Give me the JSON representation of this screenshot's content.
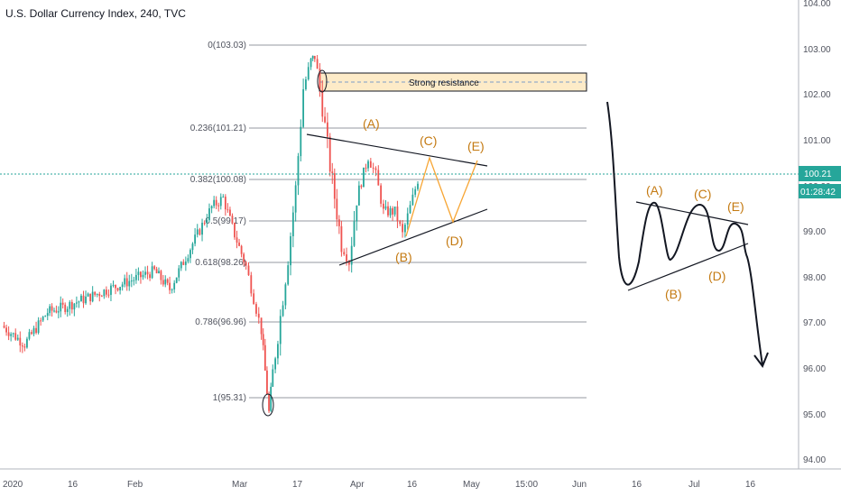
{
  "header": {
    "title": "U.S. Dollar Currency Index, 240, TVC"
  },
  "colors": {
    "up": "#26a69a",
    "down": "#ef5350",
    "wave_label": "#c47a12",
    "projection": "#f7a533",
    "fib_line": "#9598a1",
    "price_line": "#26a69a",
    "price_tag_bg": "#26a69a",
    "resistance_fill": "#fdebc8",
    "axis_text": "#50535e"
  },
  "price_axis": {
    "ticks": [
      "104.00",
      "103.00",
      "102.00",
      "101.00",
      "100.00",
      "99.00",
      "98.00",
      "97.00",
      "96.00",
      "95.00",
      "94.00"
    ],
    "current_price": "100.21",
    "countdown": "01:28:42"
  },
  "time_axis": {
    "ticks": [
      "2020",
      "16",
      "Feb",
      "Mar",
      "17",
      "Apr",
      "16",
      "May",
      "15:00",
      "Jun",
      "16",
      "Jul",
      "16"
    ]
  },
  "fib_levels": [
    {
      "label": "0(103.03)"
    },
    {
      "label": "0.236(101.21)"
    },
    {
      "label": "0.382(100.08)"
    },
    {
      "label": "0.5(99.17)"
    },
    {
      "label": "0.618(98.26)"
    },
    {
      "label": "0.786(96.96)"
    },
    {
      "label": "1(95.31)"
    }
  ],
  "resistance": {
    "label": "Strong resistance"
  },
  "wave_labels": {
    "chart": [
      "(A)",
      "(B)",
      "(C)",
      "(D)",
      "(E)"
    ],
    "schematic": [
      "(A)",
      "(B)",
      "(C)",
      "(D)",
      "(E)"
    ]
  },
  "chart_data": {
    "type": "candlestick",
    "title": "U.S. Dollar Currency Index, 240, TVC",
    "ylim": [
      93.8,
      104.0
    ],
    "price_series": [
      {
        "x": "2020-01-01",
        "y": 97.0
      },
      {
        "x": "2020-01-07",
        "y": 96.6
      },
      {
        "x": "2020-01-13",
        "y": 97.3
      },
      {
        "x": "2020-01-17",
        "y": 97.4
      },
      {
        "x": "2020-01-23",
        "y": 97.6
      },
      {
        "x": "2020-01-29",
        "y": 97.8
      },
      {
        "x": "2020-02-04",
        "y": 98.0
      },
      {
        "x": "2020-02-10",
        "y": 98.2
      },
      {
        "x": "2020-02-14",
        "y": 97.8
      },
      {
        "x": "2020-02-20",
        "y": 98.8
      },
      {
        "x": "2020-02-25",
        "y": 99.6
      },
      {
        "x": "2020-02-28",
        "y": 99.8
      },
      {
        "x": "2020-03-02",
        "y": 99.0
      },
      {
        "x": "2020-03-05",
        "y": 98.3
      },
      {
        "x": "2020-03-07",
        "y": 97.6
      },
      {
        "x": "2020-03-09",
        "y": 96.9
      },
      {
        "x": "2020-03-10",
        "y": 96.0
      },
      {
        "x": "2020-03-11",
        "y": 95.1
      },
      {
        "x": "2020-03-12",
        "y": 96.0
      },
      {
        "x": "2020-03-14",
        "y": 97.2
      },
      {
        "x": "2020-03-16",
        "y": 98.5
      },
      {
        "x": "2020-03-18",
        "y": 100.0
      },
      {
        "x": "2020-03-20",
        "y": 102.2
      },
      {
        "x": "2020-03-22",
        "y": 102.8
      },
      {
        "x": "2020-03-23",
        "y": 102.9
      },
      {
        "x": "2020-03-25",
        "y": 101.8
      },
      {
        "x": "2020-03-27",
        "y": 100.5
      },
      {
        "x": "2020-03-30",
        "y": 98.8
      },
      {
        "x": "2020-04-01",
        "y": 98.4
      },
      {
        "x": "2020-04-03",
        "y": 99.8
      },
      {
        "x": "2020-04-06",
        "y": 100.7
      },
      {
        "x": "2020-04-08",
        "y": 100.3
      },
      {
        "x": "2020-04-10",
        "y": 99.5
      },
      {
        "x": "2020-04-13",
        "y": 99.5
      },
      {
        "x": "2020-04-15",
        "y": 99.0
      },
      {
        "x": "2020-04-17",
        "y": 99.6
      },
      {
        "x": "2020-04-19",
        "y": 100.2
      }
    ],
    "fib_retracement": [
      {
        "ratio": 0,
        "price": 103.03
      },
      {
        "ratio": 0.236,
        "price": 101.21
      },
      {
        "ratio": 0.382,
        "price": 100.08
      },
      {
        "ratio": 0.5,
        "price": 99.17
      },
      {
        "ratio": 0.618,
        "price": 98.26
      },
      {
        "ratio": 0.786,
        "price": 96.96
      },
      {
        "ratio": 1,
        "price": 95.31
      }
    ],
    "resistance_zone": [
      102.0,
      102.4
    ],
    "current_price": 100.21,
    "triangle_projection": [
      {
        "wave": "(B)",
        "price": 98.8
      },
      {
        "wave": "(C)",
        "price": 100.5
      },
      {
        "wave": "(D)",
        "price": 99.2
      },
      {
        "wave": "(E)",
        "price": 100.6
      }
    ]
  }
}
